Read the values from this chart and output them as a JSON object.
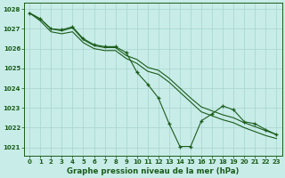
{
  "title": "Graphe pression niveau de la mer (hPa)",
  "bg_color": "#c8ece8",
  "grid_color": "#a8d4ce",
  "line_color": "#1a5c1a",
  "xlim_min": -0.5,
  "xlim_max": 23.5,
  "ylim_min": 1020.6,
  "ylim_max": 1028.3,
  "yticks": [
    1021,
    1022,
    1023,
    1024,
    1025,
    1026,
    1027,
    1028
  ],
  "xticks": [
    0,
    1,
    2,
    3,
    4,
    5,
    6,
    7,
    8,
    9,
    10,
    11,
    12,
    13,
    14,
    15,
    16,
    17,
    18,
    19,
    20,
    21,
    22,
    23
  ],
  "hours": [
    0,
    1,
    2,
    3,
    4,
    5,
    6,
    7,
    8,
    9,
    10,
    11,
    12,
    13,
    14,
    15,
    16,
    17,
    18,
    19,
    20,
    21,
    22,
    23
  ],
  "line_actual": [
    1027.8,
    1027.5,
    1027.0,
    1026.95,
    1027.1,
    1026.5,
    1026.2,
    1026.1,
    1026.1,
    1025.8,
    1024.8,
    1024.2,
    1023.5,
    1022.2,
    1021.05,
    1021.05,
    1022.35,
    1022.7,
    1023.1,
    1022.9,
    1022.3,
    1022.2,
    1021.9,
    1021.65
  ],
  "line_high": [
    1027.8,
    1027.5,
    1027.0,
    1026.9,
    1027.05,
    1026.45,
    1026.15,
    1026.05,
    1026.05,
    1025.65,
    1025.45,
    1025.05,
    1024.9,
    1024.5,
    1024.0,
    1023.5,
    1023.05,
    1022.85,
    1022.65,
    1022.5,
    1022.25,
    1022.05,
    1021.85,
    1021.65
  ],
  "line_low": [
    1027.8,
    1027.4,
    1026.85,
    1026.75,
    1026.85,
    1026.3,
    1026.0,
    1025.9,
    1025.9,
    1025.5,
    1025.25,
    1024.85,
    1024.7,
    1024.3,
    1023.8,
    1023.3,
    1022.8,
    1022.6,
    1022.4,
    1022.25,
    1022.0,
    1021.8,
    1021.6,
    1021.45
  ]
}
